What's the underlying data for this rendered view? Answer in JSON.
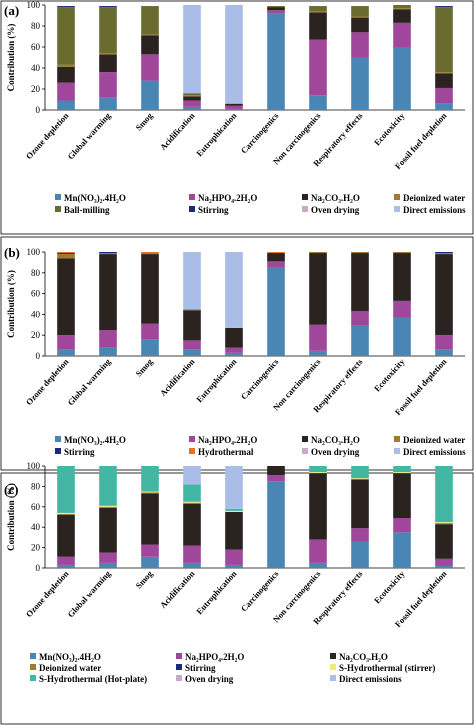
{
  "colors": {
    "Mn(NO3)2.4H2O": "#4a86b4",
    "Na2HPO4.2H2O": "#a1479b",
    "Na2CO3.H2O": "#2b2320",
    "Deionized water": "#a07a31",
    "Ball-milling": "#6a6b2e",
    "Stirring": "#1c2a78",
    "Oven drying": "#c9abc7",
    "Direct emissions": "#a9bde6",
    "Hydrothermal": "#e2742c",
    "S-Hydrothermal (stirrer)": "#f0ec7a",
    "S-Hydrothermal (Hot-plate)": "#43b6a4"
  },
  "chart_data": [
    {
      "panel": "(a)",
      "type": "bar",
      "stacked": true,
      "ylabel": "Contribution (%)",
      "ylim": [
        0,
        100
      ],
      "yticks": [
        0,
        20,
        40,
        60,
        80,
        100
      ],
      "categories": [
        "Ozone depletion",
        "Global warming",
        "Smog",
        "Acidification",
        "Eutrophication",
        "Carcinogenics",
        "Non carcinogenics",
        "Respiratory effects",
        "Ecotoxicity",
        "Fossil fuel depletion"
      ],
      "series": [
        {
          "name": "Mn(NO₃)₂.4H₂O",
          "key": "Mn(NO3)2.4H2O",
          "values": [
            9,
            12,
            28,
            3,
            1,
            92,
            14,
            50,
            60,
            6
          ]
        },
        {
          "name": "Na₂HPO₄.2H₂O",
          "key": "Na2HPO4.2H2O",
          "values": [
            17,
            24,
            25,
            6,
            3,
            3,
            53,
            24,
            23,
            15
          ]
        },
        {
          "name": "Na₂CO₃.H₂O",
          "key": "Na2CO3.H2O",
          "values": [
            15,
            17,
            18,
            4,
            2,
            3,
            26,
            14,
            13,
            14
          ]
        },
        {
          "name": "Deionized water",
          "key": "Deionized water",
          "values": [
            2,
            1,
            1,
            1,
            0,
            0,
            1,
            1,
            1,
            1
          ]
        },
        {
          "name": "Ball-milling",
          "key": "Ball-milling",
          "values": [
            55,
            44,
            27,
            2,
            0,
            1,
            5,
            10,
            3,
            62
          ]
        },
        {
          "name": "Stirring",
          "key": "Stirring",
          "values": [
            1,
            1,
            0,
            0,
            0,
            0,
            0,
            0,
            0,
            1
          ]
        },
        {
          "name": "Oven drying",
          "key": "Oven drying",
          "values": [
            0,
            0,
            0,
            0,
            0,
            0,
            0,
            0,
            0,
            0
          ]
        },
        {
          "name": "Direct emissions",
          "key": "Direct emissions",
          "values": [
            0,
            0,
            0,
            84,
            94,
            0,
            0,
            0,
            0,
            0
          ]
        }
      ]
    },
    {
      "panel": "(b)",
      "type": "bar",
      "stacked": true,
      "ylabel": "Contribution (%)",
      "ylim": [
        0,
        100
      ],
      "yticks": [
        0,
        20,
        40,
        60,
        80,
        100
      ],
      "categories": [
        "Ozone depletion",
        "Global warming",
        "Smog",
        "Acidification",
        "Eutrophication",
        "Carcinogenics",
        "Non carcinogenics",
        "Respiratory effects",
        "Ecotoxicity",
        "Fossil fuel depletion"
      ],
      "series": [
        {
          "name": "Mn(NO₃)₂.4H₂O",
          "key": "Mn(NO3)2.4H2O",
          "values": [
            6,
            8,
            16,
            6,
            3,
            85,
            5,
            29,
            37,
            6
          ]
        },
        {
          "name": "Na₂HPO₄.2H₂O",
          "key": "Na2HPO4.2H2O",
          "values": [
            14,
            17,
            15,
            9,
            5,
            6,
            25,
            14,
            16,
            14
          ]
        },
        {
          "name": "Na₂CO₃.H₂O",
          "key": "Na2CO3.H2O",
          "values": [
            74,
            73,
            67,
            29,
            19,
            8,
            69,
            56,
            46,
            78
          ]
        },
        {
          "name": "Deionized water",
          "key": "Deionized water",
          "values": [
            4,
            1,
            1,
            1,
            0,
            0,
            1,
            1,
            1,
            1
          ]
        },
        {
          "name": "Stirring",
          "key": "Stirring",
          "values": [
            1,
            1,
            0,
            0,
            0,
            0,
            0,
            0,
            0,
            1
          ]
        },
        {
          "name": "Hydrothermal",
          "key": "Hydrothermal",
          "values": [
            1,
            0,
            1,
            0,
            0,
            1,
            0,
            0,
            0,
            0
          ]
        },
        {
          "name": "Oven drying",
          "key": "Oven drying",
          "values": [
            0,
            0,
            0,
            0,
            0,
            0,
            0,
            0,
            0,
            0
          ]
        },
        {
          "name": "Direct emissions",
          "key": "Direct emissions",
          "values": [
            0,
            0,
            0,
            55,
            73,
            0,
            0,
            0,
            0,
            0
          ]
        }
      ]
    },
    {
      "panel": "(c)",
      "type": "bar",
      "stacked": true,
      "ylabel": "Contribution (%)",
      "ylim": [
        0,
        100
      ],
      "yticks": [
        0,
        20,
        40,
        60,
        80,
        100
      ],
      "categories": [
        "Ozone depletion",
        "Global warming",
        "Smog",
        "Acidification",
        "Eutrophication",
        "Carcinogenics",
        "Non carcinogenics",
        "Respiratory effects",
        "Ecotoxicity",
        "Fossil fuel depletion"
      ],
      "series": [
        {
          "name": "Mn(NO₃)₂.4H₂O",
          "key": "Mn(NO3)2.4H2O",
          "values": [
            3,
            5,
            11,
            5,
            3,
            85,
            5,
            26,
            35,
            2
          ]
        },
        {
          "name": "Na₂HPO₄.2H₂O",
          "key": "Na2HPO4.2H2O",
          "values": [
            8,
            10,
            12,
            17,
            15,
            6,
            23,
            13,
            14,
            7
          ]
        },
        {
          "name": "Na₂CO₃.H₂O",
          "key": "Na2CO3.H2O",
          "values": [
            41,
            44,
            50,
            41,
            37,
            9,
            65,
            48,
            44,
            34
          ]
        },
        {
          "name": "Deionized water",
          "key": "Deionized water",
          "values": [
            1,
            1,
            1,
            1,
            0,
            0,
            0,
            0,
            0,
            1
          ]
        },
        {
          "name": "Stirring",
          "key": "Stirring",
          "values": [
            0,
            0,
            0,
            0,
            0,
            0,
            0,
            0,
            0,
            0
          ]
        },
        {
          "name": "S-Hydrothermal (stirrer)",
          "key": "S-Hydrothermal (stirrer)",
          "values": [
            1,
            1,
            1,
            1,
            1,
            0,
            1,
            1,
            1,
            1
          ]
        },
        {
          "name": "S-Hydrothermal (Hot-plate)",
          "key": "S-Hydrothermal (Hot-plate)",
          "values": [
            46,
            39,
            25,
            17,
            2,
            0,
            6,
            12,
            6,
            55
          ]
        },
        {
          "name": "Oven drying",
          "key": "Oven drying",
          "values": [
            0,
            0,
            0,
            0,
            0,
            0,
            0,
            0,
            0,
            0
          ]
        },
        {
          "name": "Direct emissions",
          "key": "Direct emissions",
          "values": [
            0,
            0,
            0,
            18,
            42,
            0,
            0,
            0,
            0,
            0
          ]
        }
      ]
    }
  ]
}
